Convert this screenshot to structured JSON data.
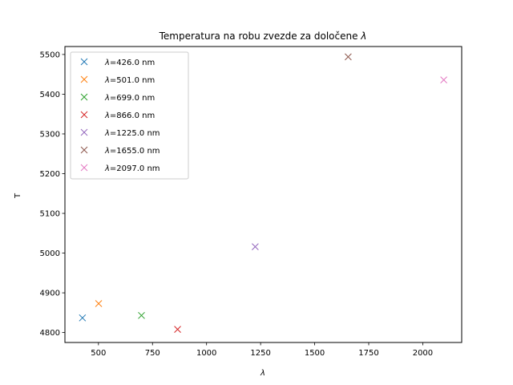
{
  "chart_data": {
    "type": "scatter",
    "title_prefix": "Temperatura na robu zvezde za določene ",
    "title_symbol": "λ",
    "xlabel": "λ",
    "ylabel": "T",
    "xlim": [
      345,
      2180
    ],
    "ylim": [
      4775,
      5520
    ],
    "x_ticks": [
      500,
      750,
      1000,
      1250,
      1500,
      1750,
      2000
    ],
    "y_ticks": [
      4800,
      4900,
      5000,
      5100,
      5200,
      5300,
      5400,
      5500
    ],
    "grid": false,
    "legend_position": "top-left",
    "marker": "x",
    "series": [
      {
        "name": "λ=426.0 nm",
        "symbol": "λ",
        "label_rest": "=426.0 nm",
        "x": 426,
        "y": 4837,
        "color": "#1f77b4"
      },
      {
        "name": "λ=501.0 nm",
        "symbol": "λ",
        "label_rest": "=501.0 nm",
        "x": 501,
        "y": 4873,
        "color": "#ff7f0e"
      },
      {
        "name": "λ=699.0 nm",
        "symbol": "λ",
        "label_rest": "=699.0 nm",
        "x": 699,
        "y": 4843,
        "color": "#2ca02c"
      },
      {
        "name": "λ=866.0 nm",
        "symbol": "λ",
        "label_rest": "=866.0 nm",
        "x": 866,
        "y": 4808,
        "color": "#d62728"
      },
      {
        "name": "λ=1225.0 nm",
        "symbol": "λ",
        "label_rest": "=1225.0 nm",
        "x": 1225,
        "y": 5016,
        "color": "#9467bd"
      },
      {
        "name": "λ=1655.0 nm",
        "symbol": "λ",
        "label_rest": "=1655.0 nm",
        "x": 1655,
        "y": 5494,
        "color": "#8c564b"
      },
      {
        "name": "λ=2097.0 nm",
        "symbol": "λ",
        "label_rest": "=2097.0 nm",
        "x": 2097,
        "y": 5436,
        "color": "#e377c2"
      }
    ]
  }
}
